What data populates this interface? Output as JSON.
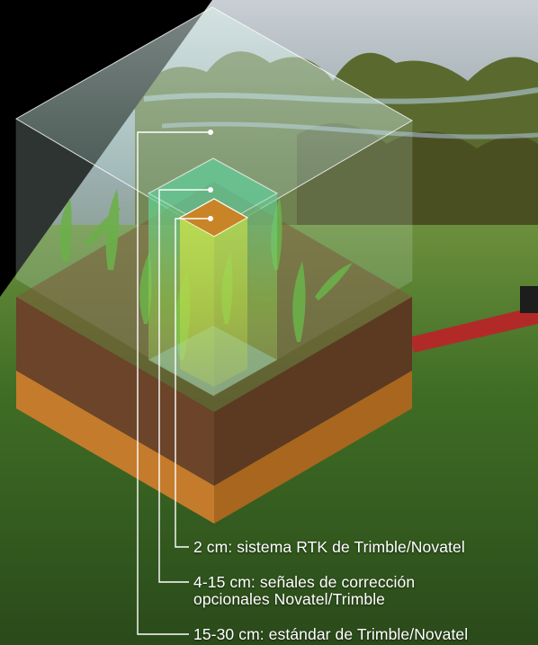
{
  "labels": {
    "rtk": "2 cm: sistema RTK de Trimble/Novatel",
    "optional": "4-15 cm: señales de corrección\nopcionales Novatel/Trimble",
    "standard": "15-30 cm: estándar de Trimble/Novatel"
  },
  "colors": {
    "soil": "#6b4429",
    "subsoil": "#c57b2c",
    "grass": "#4a7a2a",
    "sky": "#9fb0b8",
    "rtk_column": "#c98428",
    "optional_column": "#6fc08a",
    "standard_column": "#a8d8c8",
    "machine": "#b12a28"
  }
}
